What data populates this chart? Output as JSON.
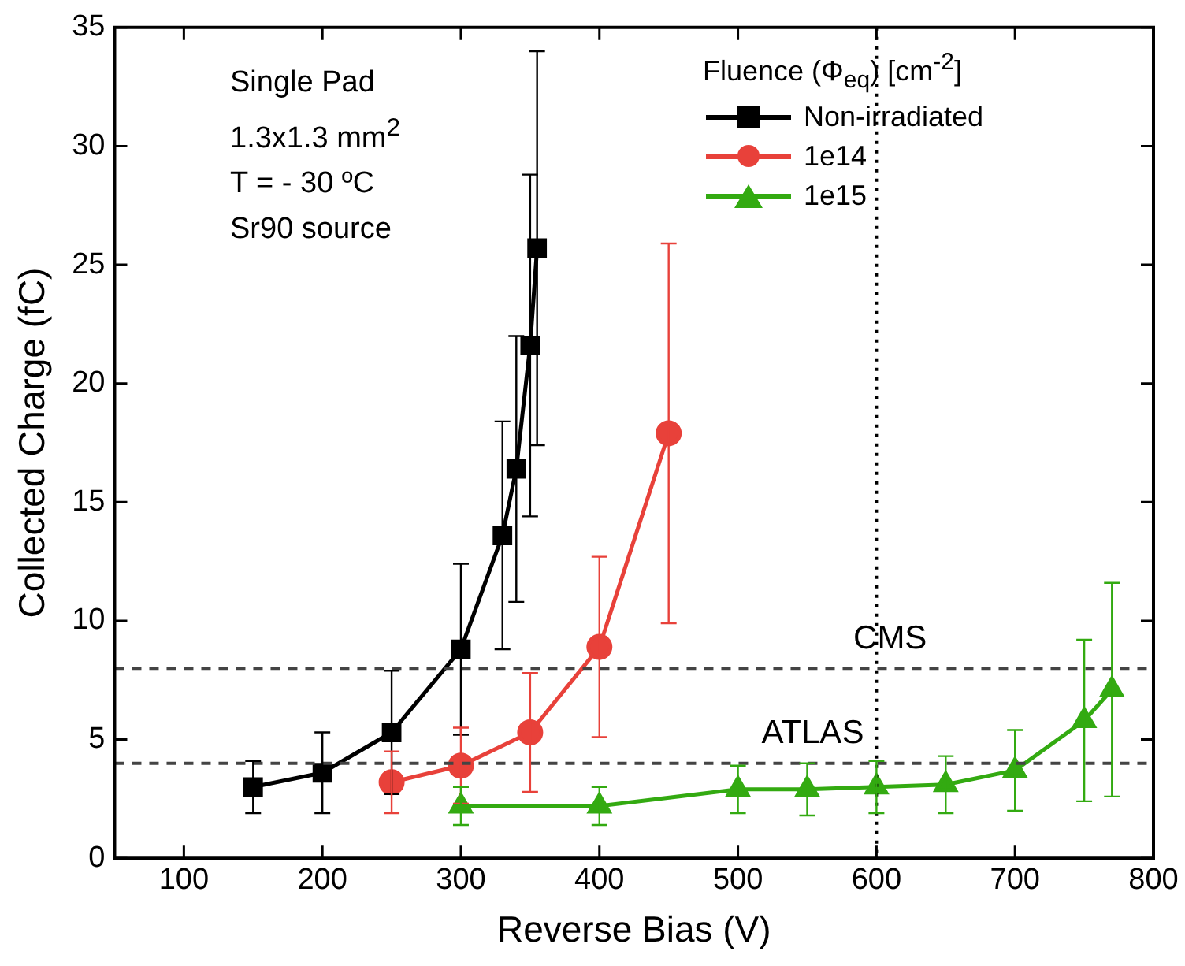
{
  "chart_data": {
    "type": "line",
    "xlabel": "Reverse Bias (V)",
    "ylabel": "Collected Charge (fC)",
    "legend_title": "Fluence (Φ$_{eq}$) [cm$^{-2}$]",
    "series": [
      {
        "name": "Non-irradiated",
        "color": "#000000",
        "marker": "square",
        "x": [
          150,
          200,
          250,
          300,
          330,
          340,
          350,
          355
        ],
        "values": [
          3.0,
          3.6,
          5.3,
          8.8,
          13.6,
          16.4,
          21.6,
          25.7
        ],
        "errors": [
          1.1,
          1.7,
          2.6,
          3.6,
          4.8,
          5.6,
          7.2,
          8.3
        ]
      },
      {
        "name": "1e14",
        "color": "#e8413a",
        "marker": "circle",
        "x": [
          250,
          300,
          350,
          400,
          450
        ],
        "values": [
          3.2,
          3.9,
          5.3,
          8.9,
          17.9
        ],
        "errors": [
          1.3,
          1.6,
          2.5,
          3.8,
          8.0
        ]
      },
      {
        "name": "1e15",
        "color": "#33aa11",
        "marker": "triangle",
        "x": [
          300,
          400,
          500,
          550,
          600,
          650,
          700,
          750,
          770
        ],
        "values": [
          2.2,
          2.2,
          2.9,
          2.9,
          3.0,
          3.1,
          3.7,
          5.8,
          7.1
        ],
        "errors": [
          0.8,
          0.8,
          1.0,
          1.1,
          1.1,
          1.2,
          1.7,
          3.4,
          4.5
        ]
      }
    ],
    "xlim": [
      50,
      800
    ],
    "xticks": [
      100,
      200,
      300,
      400,
      500,
      600,
      700,
      800
    ],
    "ylim": [
      0,
      35
    ],
    "yticks": [
      0,
      5,
      10,
      15,
      20,
      25,
      30,
      35
    ],
    "ref_lines": [
      {
        "axis": "y",
        "value": 8,
        "label": "CMS",
        "color": "#444444",
        "line_style": "dashed"
      },
      {
        "axis": "y",
        "value": 4,
        "label": "ATLAS",
        "color": "#444444",
        "line_style": "dashed"
      },
      {
        "axis": "x",
        "value": 600,
        "label": null,
        "color": "#000000",
        "line_style": "dotted"
      }
    ],
    "annotations": [
      "Single Pad",
      "1.3x1.3 mm$^{2}$",
      "T = - 30 ºC",
      "Sr90 source"
    ],
    "legend": "top right",
    "grid": false,
    "line_style": "solid"
  }
}
